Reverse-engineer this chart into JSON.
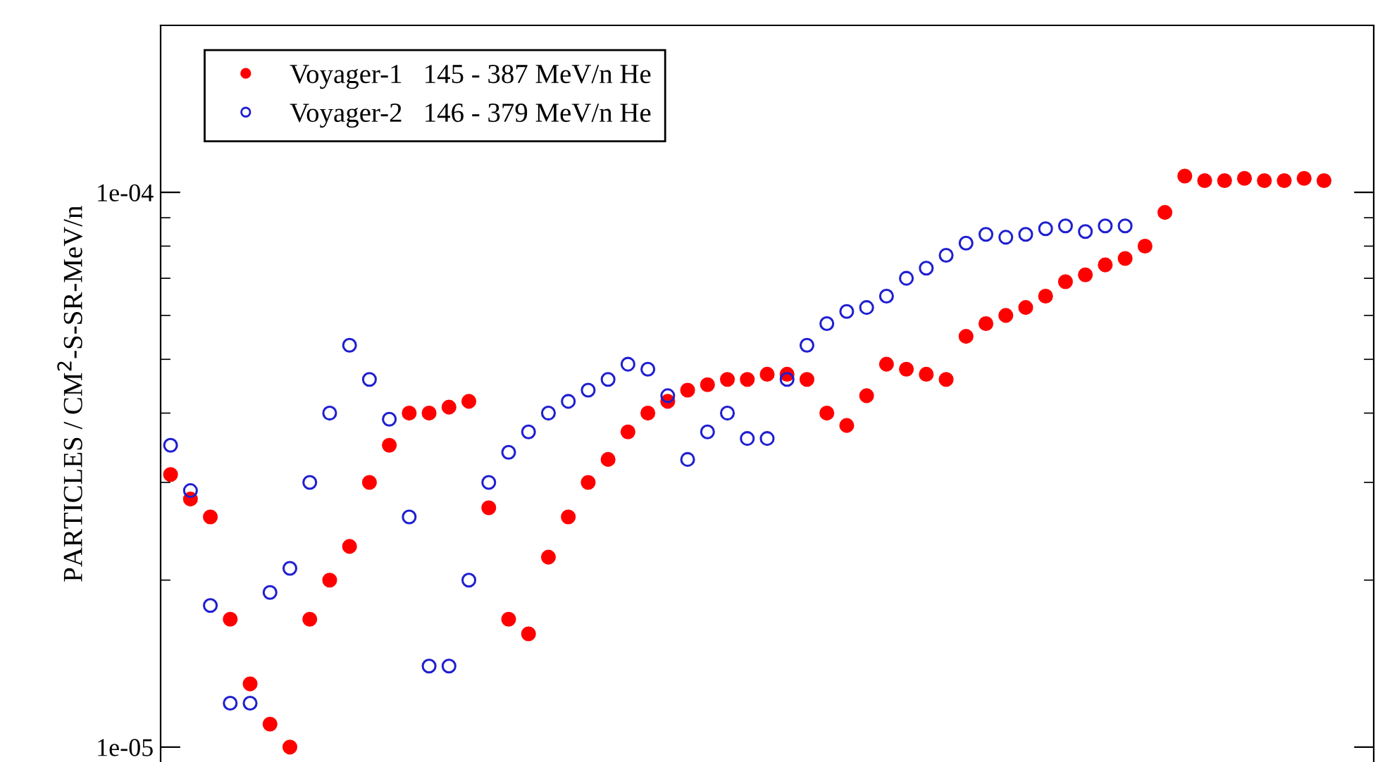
{
  "chart_data": {
    "type": "scatter",
    "ylabel": "PARTICLES / CM$^{2}$-S-SR-MeV/n",
    "categories": [
      null,
      null,
      null,
      null,
      null,
      null,
      null,
      null,
      null,
      null,
      null,
      null,
      null,
      null,
      null,
      null,
      null,
      null,
      null,
      null,
      null,
      null,
      null,
      null,
      null,
      null,
      null,
      null,
      null,
      null,
      null,
      null,
      null,
      null,
      null,
      null,
      null,
      null,
      null,
      null,
      null,
      null,
      null,
      null,
      null,
      null,
      null,
      null,
      null,
      null,
      null,
      null,
      null,
      null,
      null,
      null,
      null,
      null,
      null,
      null,
      null
    ],
    "series": [
      {
        "name": "Voyager-1   145 - 387 MeV/n He",
        "color": "#ff0000",
        "values": [
          3.1e-05,
          2.8e-05,
          2.6e-05,
          1.7e-05,
          1.3e-05,
          1.1e-05,
          1e-05,
          1.7e-05,
          2e-05,
          2.3e-05,
          3e-05,
          3.5e-05,
          4e-05,
          4e-05,
          4.1e-05,
          4.2e-05,
          2.7e-05,
          1.7e-05,
          1.6e-05,
          2.2e-05,
          2.6e-05,
          3e-05,
          3.3e-05,
          3.7e-05,
          4e-05,
          4.2e-05,
          4.4e-05,
          4.5e-05,
          4.6e-05,
          4.6e-05,
          4.7e-05,
          4.7e-05,
          4.6e-05,
          4e-05,
          3.8e-05,
          4.3e-05,
          4.9e-05,
          4.8e-05,
          4.7e-05,
          4.6e-05,
          5.5e-05,
          5.8e-05,
          6e-05,
          6.2e-05,
          6.5e-05,
          6.9e-05,
          7.1e-05,
          7.4e-05,
          7.6e-05,
          8e-05,
          9.2e-05,
          0.000107,
          0.000105,
          0.000105,
          0.000106,
          0.000105,
          0.000105,
          0.000106,
          0.000105,
          null,
          null
        ]
      },
      {
        "name": "Voyager-2   146 - 379 MeV/n He",
        "color": "#1f1fd0",
        "values": [
          3.5e-05,
          2.9e-05,
          1.8e-05,
          1.2e-05,
          1.2e-05,
          1.9e-05,
          2.1e-05,
          3e-05,
          4e-05,
          5.3e-05,
          4.6e-05,
          3.9e-05,
          2.6e-05,
          1.4e-05,
          1.4e-05,
          2e-05,
          3e-05,
          3.4e-05,
          3.7e-05,
          4e-05,
          4.2e-05,
          4.4e-05,
          4.6e-05,
          4.9e-05,
          4.8e-05,
          4.3e-05,
          3.3e-05,
          3.7e-05,
          4e-05,
          3.6e-05,
          3.6e-05,
          4.6e-05,
          5.3e-05,
          5.8e-05,
          6.1e-05,
          6.2e-05,
          6.5e-05,
          7e-05,
          7.3e-05,
          7.7e-05,
          8.1e-05,
          8.4e-05,
          8.3e-05,
          8.4e-05,
          8.6e-05,
          8.7e-05,
          8.5e-05,
          8.7e-05,
          8.7e-05,
          null,
          null,
          null,
          null,
          null,
          null,
          null,
          null,
          null,
          null,
          null,
          null
        ]
      }
    ],
    "log": "y",
    "ylim": [
      9.4e-06,
      0.0002
    ],
    "yticks": [
      {
        "value": 1e-05,
        "label": "1e-05"
      },
      {
        "value": 0.0001,
        "label": "1e-04"
      }
    ],
    "tick_labels": "y",
    "marker": "circle",
    "grid": false,
    "legend": "top left"
  }
}
